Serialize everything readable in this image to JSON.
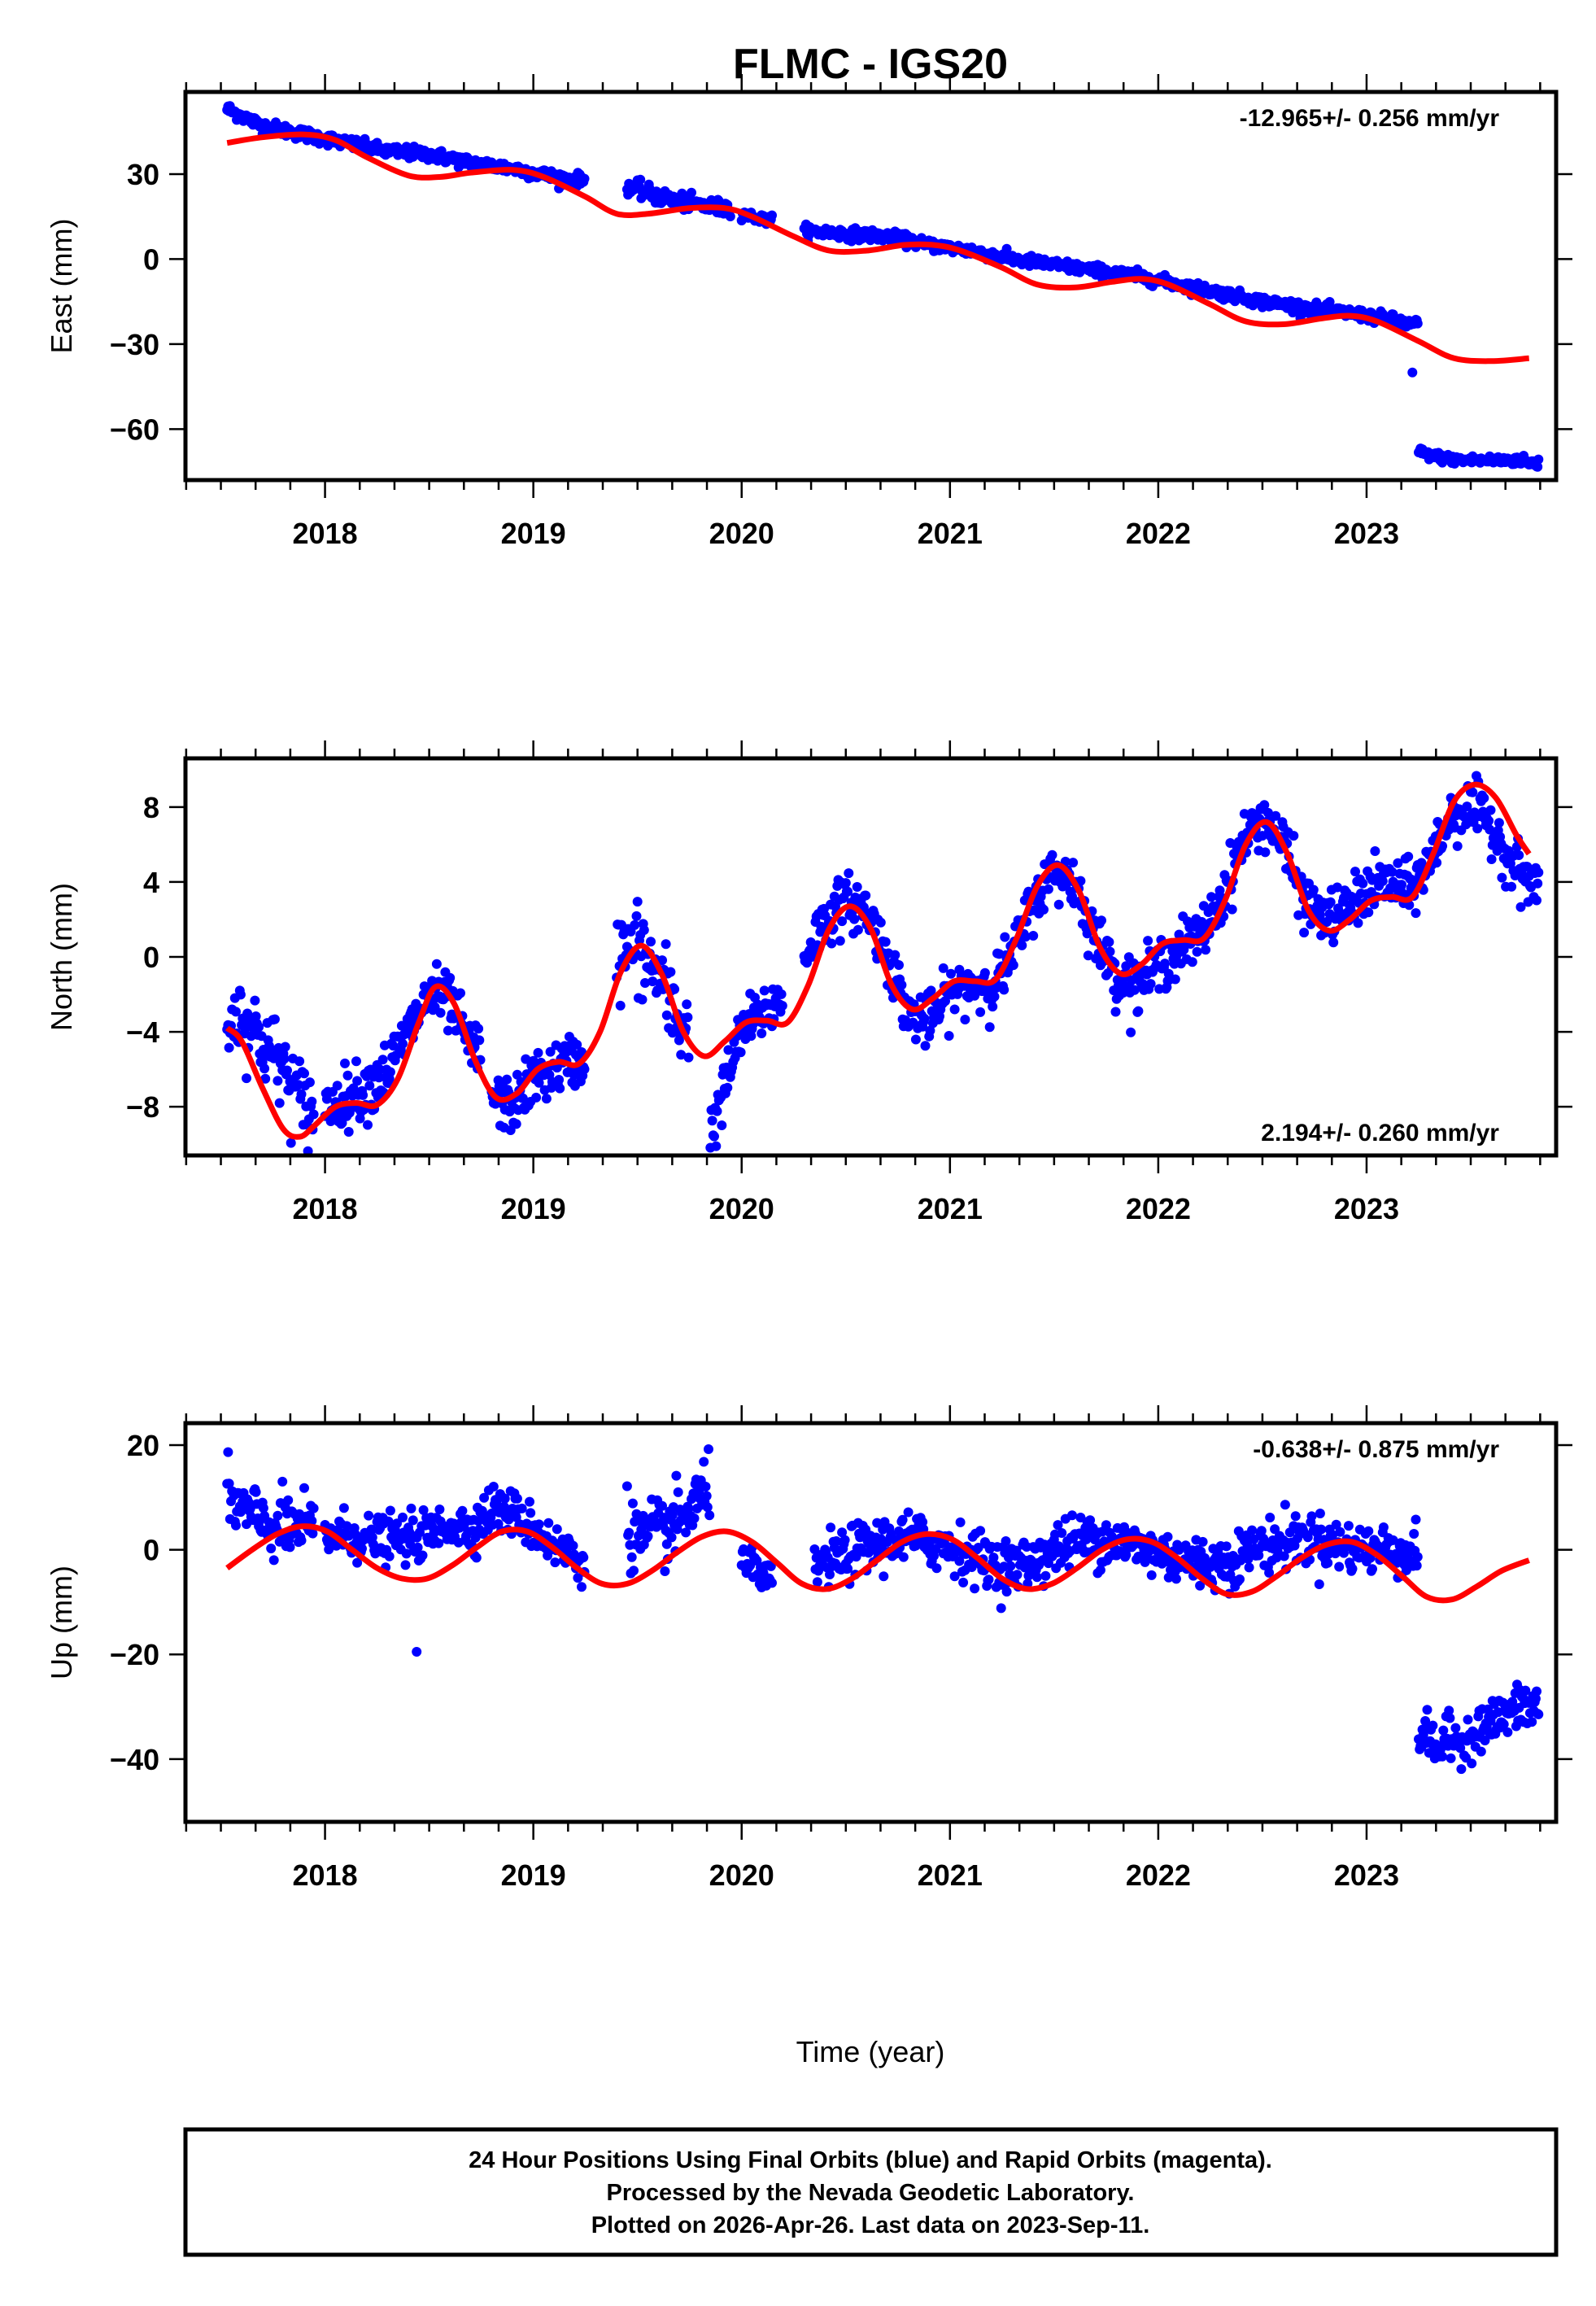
{
  "figure": {
    "title": "FLMC - IGS20",
    "xlabel": "Time (year)",
    "footer": [
      "24 Hour Positions Using Final Orbits (blue) and Rapid Orbits (magenta).",
      "Processed by the Nevada Geodetic Laboratory.",
      "Plotted on 2026-Apr-26. Last data on 2023-Sep-11."
    ]
  },
  "chart_data": [
    {
      "type": "scatter",
      "panel": "east",
      "title": "FLMC - IGS20",
      "xlabel": "",
      "ylabel": "East (mm)",
      "xlim": [
        2017.33,
        2023.91
      ],
      "ylim": [
        -78,
        59
      ],
      "xticks": [
        2018,
        2019,
        2020,
        2021,
        2022,
        2023
      ],
      "yticks": [
        30,
        0,
        -30,
        -60
      ],
      "ytick_labels": [
        "30",
        "0",
        "−30",
        "−60"
      ],
      "grid": false,
      "rate_label": "-12.965+/- 0.256 mm/yr",
      "rate_position": "top-right",
      "series": [
        {
          "name": "Final Orbits",
          "color": "#0000ff",
          "kind": "points",
          "segments": [
            {
              "x": [
                2017.53,
                2017.7,
                2017.9,
                2018.1,
                2018.3,
                2018.5,
                2018.7,
                2018.9,
                2019.1,
                2019.2
              ],
              "y": [
                53,
                47,
                44,
                41,
                38,
                37,
                34,
                32,
                29,
                28
              ],
              "spread": 2.0
            },
            {
              "x": [
                2019.45,
                2019.6,
                2019.8,
                2019.9
              ],
              "y": [
                26,
                22,
                19,
                18
              ],
              "spread": 2.5
            },
            {
              "x": [
                2020.0,
                2020.1
              ],
              "y": [
                16,
                14
              ],
              "spread": 1.5
            },
            {
              "x": [
                2020.3,
                2020.5,
                2020.7,
                2020.9,
                2021.1,
                2021.3,
                2021.5,
                2021.7,
                2021.9,
                2022.1,
                2022.3,
                2022.5,
                2022.7,
                2022.9,
                2023.1,
                2023.2
              ],
              "y": [
                10,
                9,
                8,
                5,
                3,
                0,
                -2,
                -4,
                -6,
                -9,
                -12,
                -15,
                -17,
                -19,
                -21,
                -23
              ],
              "spread": 1.8
            },
            {
              "x": [
                2023.22
              ],
              "y": [
                -40
              ],
              "spread": 0
            },
            {
              "x": [
                2023.25,
                2023.35,
                2023.45,
                2023.55,
                2023.65,
                2023.75,
                2023.78
              ],
              "y": [
                -68,
                -70,
                -71,
                -71,
                -71,
                -71,
                -72
              ],
              "spread": 1.5
            }
          ]
        },
        {
          "name": "Model fit",
          "color": "#ff0000",
          "kind": "line",
          "x": [
            2017.53,
            2017.7,
            2017.9,
            2018.05,
            2018.2,
            2018.4,
            2018.55,
            2018.7,
            2018.9,
            2019.05,
            2019.25,
            2019.4,
            2019.55,
            2019.75,
            2019.92,
            2020.05,
            2020.25,
            2020.42,
            2020.6,
            2020.78,
            2020.92,
            2021.05,
            2021.25,
            2021.42,
            2021.6,
            2021.78,
            2021.92,
            2022.05,
            2022.25,
            2022.42,
            2022.6,
            2022.78,
            2022.92,
            2023.05,
            2023.25,
            2023.42,
            2023.6,
            2023.78
          ],
          "y": [
            41,
            43,
            44,
            42,
            36,
            29.5,
            29,
            30.5,
            31.5,
            29,
            22,
            16,
            16,
            18,
            18,
            15,
            8,
            3,
            3,
            5,
            5,
            3,
            -3,
            -9,
            -10,
            -8,
            -7,
            -9,
            -16,
            -22,
            -23,
            -21,
            -20,
            -22,
            -29,
            -35,
            -36,
            -35
          ]
        }
      ]
    },
    {
      "type": "scatter",
      "panel": "north",
      "xlabel": "",
      "ylabel": "North (mm)",
      "xlim": [
        2017.33,
        2023.91
      ],
      "ylim": [
        -10.6,
        10.6
      ],
      "xticks": [
        2018,
        2019,
        2020,
        2021,
        2022,
        2023
      ],
      "yticks": [
        8,
        4,
        0,
        -4,
        -8
      ],
      "ytick_labels": [
        "8",
        "4",
        "0",
        "−4",
        "−8"
      ],
      "grid": false,
      "rate_label": "2.194+/- 0.260 mm/yr",
      "rate_position": "bottom-right",
      "series": [
        {
          "name": "Final Orbits",
          "color": "#0000ff",
          "kind": "points",
          "segments": [
            {
              "x": [
                2017.53,
                2017.6,
                2017.7,
                2017.8,
                2017.9
              ],
              "y": [
                -3.5,
                -3,
                -4.5,
                -6,
                -8
              ],
              "spread": 2.0
            },
            {
              "x": [
                2018.0,
                2018.1,
                2018.2,
                2018.3,
                2018.4,
                2018.5,
                2018.6,
                2018.7
              ],
              "y": [
                -8,
                -7.5,
                -7,
                -6,
                -4,
                -2,
                -2.5,
                -5
              ],
              "spread": 1.4
            },
            {
              "x": [
                2018.8,
                2018.9,
                2019.0,
                2019.1,
                2019.2
              ],
              "y": [
                -7.5,
                -8,
                -6.5,
                -6,
                -5.5
              ],
              "spread": 1.3
            },
            {
              "x": [
                2019.4,
                2019.5,
                2019.6,
                2019.7
              ],
              "y": [
                0,
                0.5,
                -1,
                -3.5
              ],
              "spread": 2.2
            },
            {
              "x": [
                2019.85,
                2020.0,
                2020.05,
                2020.15
              ],
              "y": [
                -9.5,
                -4,
                -3.5,
                -2.5
              ],
              "spread": 1.3
            },
            {
              "x": [
                2020.3,
                2020.4,
                2020.5,
                2020.6,
                2020.7,
                2020.8,
                2020.9,
                2021.0,
                2021.1,
                2021.2,
                2021.3,
                2021.4,
                2021.5,
                2021.6,
                2021.7,
                2021.8,
                2021.9,
                2022.0,
                2022.1,
                2022.2,
                2022.3,
                2022.4,
                2022.5,
                2022.6,
                2022.7,
                2022.8,
                2022.9,
                2023.0,
                2023.1,
                2023.2,
                2023.3,
                2023.4,
                2023.5,
                2023.6,
                2023.7,
                2023.78
              ],
              "y": [
                0,
                2,
                3,
                2.5,
                0,
                -3,
                -3.5,
                -2,
                -1.5,
                -1.5,
                0,
                3,
                4.5,
                4,
                1,
                -1,
                -1.5,
                -0.5,
                0.5,
                1,
                3,
                6,
                7.5,
                6,
                3,
                2,
                2.5,
                3.5,
                4,
                3.5,
                5,
                7.5,
                8,
                7,
                5,
                4
              ],
              "spread": 1.3
            }
          ]
        },
        {
          "name": "Model fit",
          "color": "#ff0000",
          "kind": "line",
          "x": [
            2017.53,
            2017.6,
            2017.7,
            2017.8,
            2017.88,
            2017.95,
            2018.05,
            2018.15,
            2018.25,
            2018.35,
            2018.45,
            2018.53,
            2018.62,
            2018.72,
            2018.82,
            2018.92,
            2019.02,
            2019.12,
            2019.22,
            2019.32,
            2019.42,
            2019.52,
            2019.62,
            2019.72,
            2019.82,
            2019.92,
            2020.02,
            2020.12,
            2020.22,
            2020.32,
            2020.42,
            2020.52,
            2020.62,
            2020.72,
            2020.82,
            2020.92,
            2021.02,
            2021.12,
            2021.22,
            2021.32,
            2021.42,
            2021.52,
            2021.62,
            2021.72,
            2021.82,
            2021.92,
            2022.02,
            2022.12,
            2022.22,
            2022.32,
            2022.42,
            2022.52,
            2022.62,
            2022.72,
            2022.82,
            2022.92,
            2023.02,
            2023.12,
            2023.22,
            2023.32,
            2023.42,
            2023.52,
            2023.62,
            2023.72,
            2023.78
          ],
          "y": [
            -3.8,
            -4.5,
            -7,
            -9.2,
            -9.6,
            -9.0,
            -8.0,
            -7.8,
            -7.9,
            -6.5,
            -3.5,
            -1.6,
            -2.5,
            -5.5,
            -7.5,
            -7.3,
            -6.0,
            -5.6,
            -5.7,
            -4.0,
            -0.8,
            0.6,
            -1.0,
            -4.0,
            -5.3,
            -4.5,
            -3.5,
            -3.4,
            -3.5,
            -1.5,
            1.5,
            2.7,
            1.5,
            -1.5,
            -2.8,
            -2.2,
            -1.3,
            -1.3,
            -1.2,
            1.0,
            3.8,
            4.9,
            3.5,
            0.5,
            -0.9,
            -0.4,
            0.7,
            0.9,
            1.0,
            3.0,
            6.0,
            7.2,
            5.5,
            2.5,
            1.4,
            2.0,
            3.0,
            3.2,
            3.2,
            5.5,
            8.3,
            9.2,
            8.5,
            6.5,
            5.5
          ]
        }
      ]
    },
    {
      "type": "scatter",
      "panel": "up",
      "xlabel": "Time (year)",
      "ylabel": "Up (mm)",
      "xlim": [
        2017.33,
        2023.91
      ],
      "ylim": [
        -52,
        24.2
      ],
      "xticks": [
        2018,
        2019,
        2020,
        2021,
        2022,
        2023
      ],
      "yticks": [
        20,
        0,
        -20,
        -40
      ],
      "ytick_labels": [
        "20",
        "0",
        "−20",
        "−40"
      ],
      "grid": false,
      "rate_label": "-0.638+/- 0.875 mm/yr",
      "rate_position": "top-right",
      "series": [
        {
          "name": "Final Orbits",
          "color": "#0000ff",
          "kind": "points",
          "segments": [
            {
              "x": [
                2017.53,
                2017.6,
                2017.7,
                2017.8,
                2017.9
              ],
              "y": [
                10,
                8,
                5,
                4,
                4
              ],
              "spread": 5.5
            },
            {
              "x": [
                2018.0,
                2018.1,
                2018.2,
                2018.3,
                2018.4,
                2018.5,
                2018.6,
                2018.7,
                2018.8,
                2018.9,
                2019.0,
                2019.1,
                2019.2
              ],
              "y": [
                3,
                3,
                2,
                2,
                2,
                3,
                5,
                4,
                8,
                7,
                4,
                1,
                -2
              ],
              "spread": 4.0
            },
            {
              "x": [
                2018.44
              ],
              "y": [
                -19.5
              ],
              "spread": 0
            },
            {
              "x": [
                2019.45,
                2019.5,
                2019.6,
                2019.7,
                2019.8
              ],
              "y": [
                5,
                2,
                3,
                5,
                10
              ],
              "spread": 6.0
            },
            {
              "x": [
                2020.0,
                2020.1
              ],
              "y": [
                0,
                -6
              ],
              "spread": 3.0
            },
            {
              "x": [
                2020.35,
                2020.45,
                2020.55,
                2020.65,
                2020.75,
                2020.85,
                2020.95,
                2021.05,
                2021.15,
                2021.25,
                2021.35,
                2021.45,
                2021.55,
                2021.65,
                2021.75,
                2021.85,
                2021.95,
                2022.05,
                2022.15,
                2022.25,
                2022.35,
                2022.45,
                2022.55,
                2022.65,
                2022.75,
                2022.85,
                2022.95,
                2023.05,
                2023.15,
                2023.2
              ],
              "y": [
                -3,
                -2,
                0,
                1,
                2,
                2,
                1,
                0,
                -2,
                -3,
                -3,
                -1,
                1,
                2,
                2,
                1,
                0,
                -1,
                -2,
                -3,
                -2,
                0,
                1,
                2,
                2,
                1,
                0,
                0,
                0,
                -1
              ],
              "spread": 4.5
            },
            {
              "x": [
                2023.25,
                2023.3,
                2023.35,
                2023.4,
                2023.45,
                2023.5,
                2023.55,
                2023.6,
                2023.65,
                2023.7,
                2023.75,
                2023.78
              ],
              "y": [
                -35,
                -36,
                -38,
                -36,
                -37,
                -35,
                -34,
                -33,
                -32,
                -31,
                -30,
                -30
              ],
              "spread": 4.0
            }
          ]
        },
        {
          "name": "Model fit",
          "color": "#ff0000",
          "kind": "line",
          "x": [
            2017.53,
            2017.65,
            2017.77,
            2017.89,
            2018.01,
            2018.13,
            2018.25,
            2018.37,
            2018.49,
            2018.61,
            2018.73,
            2018.85,
            2018.97,
            2019.09,
            2019.21,
            2019.33,
            2019.45,
            2019.57,
            2019.69,
            2019.81,
            2019.93,
            2020.05,
            2020.17,
            2020.29,
            2020.41,
            2020.53,
            2020.65,
            2020.77,
            2020.89,
            2021.01,
            2021.13,
            2021.25,
            2021.37,
            2021.49,
            2021.61,
            2021.73,
            2021.85,
            2021.97,
            2022.09,
            2022.21,
            2022.33,
            2022.45,
            2022.57,
            2022.69,
            2022.81,
            2022.93,
            2023.05,
            2023.17,
            2023.29,
            2023.41,
            2023.53,
            2023.65,
            2023.78
          ],
          "y": [
            -3.5,
            0,
            3,
            4.5,
            3.5,
            0,
            -3.5,
            -5.5,
            -5.5,
            -3,
            0.5,
            3.5,
            3.5,
            0.5,
            -3.5,
            -6.5,
            -6.5,
            -4,
            -0.5,
            2.5,
            3.5,
            1.5,
            -2.5,
            -6.5,
            -7.5,
            -5.5,
            -2,
            1.5,
            3,
            2,
            -1.5,
            -5.5,
            -7.5,
            -6.5,
            -3.5,
            0,
            2,
            1.5,
            -1.5,
            -5.5,
            -8.5,
            -8,
            -5,
            -1.5,
            1,
            1.5,
            -1,
            -5,
            -9,
            -9.5,
            -7,
            -4,
            -2
          ]
        }
      ]
    }
  ]
}
